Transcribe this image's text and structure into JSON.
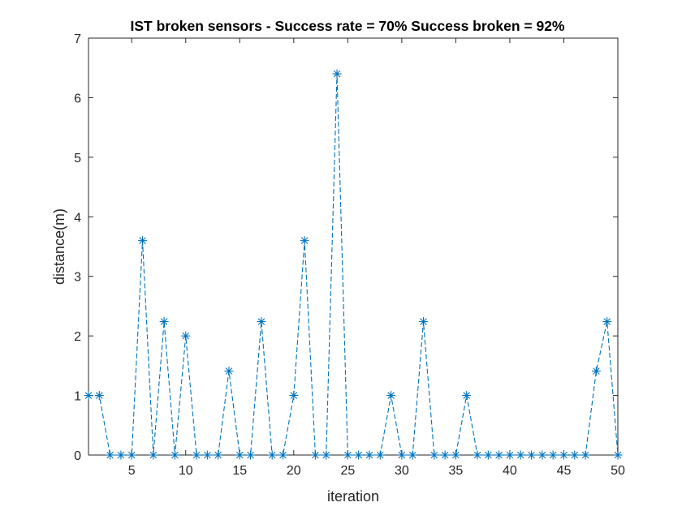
{
  "chart_data": {
    "type": "line",
    "title": "IST broken sensors - Success rate = 70% Success broken = 92%",
    "xlabel": "iteration",
    "ylabel": "distance(m)",
    "xlim": [
      1,
      50
    ],
    "ylim": [
      0,
      7
    ],
    "xticks": [
      "5",
      "10",
      "15",
      "20",
      "25",
      "30",
      "35",
      "40",
      "45",
      "50"
    ],
    "yticks": [
      "0",
      "1",
      "2",
      "3",
      "4",
      "5",
      "6",
      "7"
    ],
    "grid": false,
    "line_style": "dashed",
    "marker": "asterisk",
    "color": "#0072BD",
    "series": [
      {
        "x": [
          1,
          2,
          3,
          4,
          5,
          6,
          7,
          8,
          9,
          10,
          11,
          12,
          13,
          14,
          15,
          16,
          17,
          18,
          19,
          20,
          21,
          22,
          23,
          24,
          25,
          26,
          27,
          28,
          29,
          30,
          31,
          32,
          33,
          34,
          35,
          36,
          37,
          38,
          39,
          40,
          41,
          42,
          43,
          44,
          45,
          46,
          47,
          48,
          49,
          50
        ],
        "y": [
          1,
          1,
          0,
          0,
          0,
          3.6,
          0,
          2.24,
          0,
          2,
          0,
          0,
          0,
          1.41,
          0,
          0,
          2.24,
          0,
          0,
          1,
          3.6,
          0,
          0,
          6.4,
          0,
          0,
          0,
          0,
          1,
          0,
          0,
          2.24,
          0,
          0,
          0,
          1,
          0,
          0,
          0,
          0,
          0,
          0,
          0,
          0,
          0,
          0,
          0,
          1.41,
          2.24,
          0
        ]
      }
    ]
  }
}
